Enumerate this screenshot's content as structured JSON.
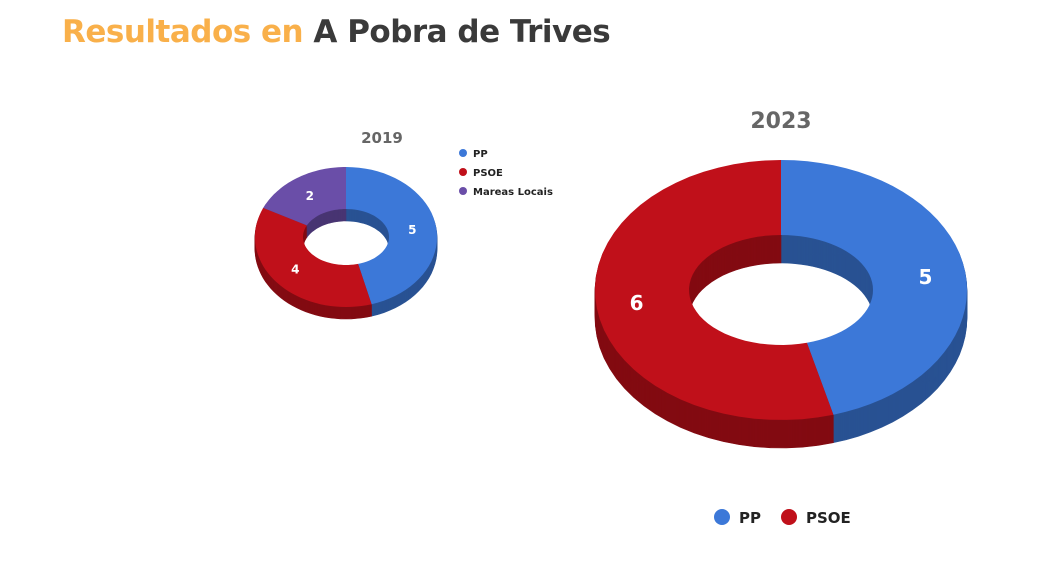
{
  "page": {
    "title_highlight": "Resultados en",
    "title_rest": "A Pobra de Trives"
  },
  "chart_data": [
    {
      "type": "pie",
      "variant": "3d-donut",
      "title": "2019",
      "categories": [
        "PP",
        "PSOE",
        "Mareas Locais"
      ],
      "values": [
        5,
        4,
        2
      ],
      "colors": [
        "#3c78d8",
        "#c0101a",
        "#6a4ea8"
      ],
      "legend": "right"
    },
    {
      "type": "pie",
      "variant": "3d-donut",
      "title": "2023",
      "categories": [
        "PP",
        "PSOE"
      ],
      "values": [
        5,
        6
      ],
      "colors": [
        "#3c78d8",
        "#c0101a"
      ],
      "legend": "bottom"
    }
  ]
}
